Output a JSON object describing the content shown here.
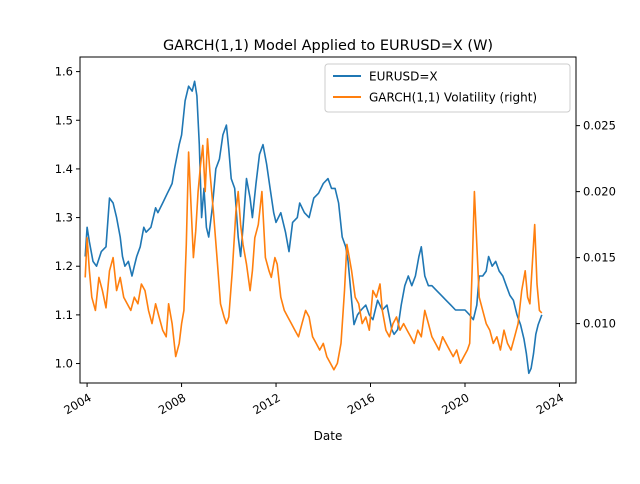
{
  "chart_data": {
    "type": "line",
    "title": "GARCH(1,1) Model Applied to EURUSD=X (W)",
    "xlabel": "Date",
    "ylabel": "",
    "y2label": "",
    "x_ticks": [
      "2004",
      "2008",
      "2012",
      "2016",
      "2020",
      "2024"
    ],
    "y_ticks": [
      "1.0",
      "1.1",
      "1.2",
      "1.3",
      "1.4",
      "1.5",
      "1.6"
    ],
    "y2_ticks": [
      "0.010",
      "0.015",
      "0.020",
      "0.025"
    ],
    "xlim": [
      2003.7,
      2024.7
    ],
    "ylim": [
      0.96,
      1.63
    ],
    "y2lim": [
      0.0055,
      0.0302
    ],
    "legend_position": "top-right",
    "series": [
      {
        "name": "EURUSD=X",
        "axis": "left",
        "color": "#1f77b4",
        "x": [
          2003.92,
          2004.0,
          2004.1,
          2004.25,
          2004.4,
          2004.6,
          2004.8,
          2004.95,
          2005.1,
          2005.25,
          2005.4,
          2005.5,
          2005.6,
          2005.75,
          2005.9,
          2006.0,
          2006.1,
          2006.25,
          2006.4,
          2006.5,
          2006.7,
          2006.9,
          2007.0,
          2007.2,
          2007.4,
          2007.5,
          2007.6,
          2007.7,
          2007.9,
          2008.0,
          2008.15,
          2008.3,
          2008.45,
          2008.55,
          2008.65,
          2008.75,
          2008.85,
          2008.95,
          2009.05,
          2009.15,
          2009.3,
          2009.45,
          2009.6,
          2009.75,
          2009.9,
          2010.0,
          2010.1,
          2010.25,
          2010.4,
          2010.5,
          2010.6,
          2010.75,
          2010.9,
          2011.0,
          2011.15,
          2011.3,
          2011.45,
          2011.6,
          2011.75,
          2011.9,
          2012.0,
          2012.2,
          2012.4,
          2012.55,
          2012.7,
          2012.9,
          2013.0,
          2013.2,
          2013.4,
          2013.6,
          2013.8,
          2014.0,
          2014.2,
          2014.35,
          2014.5,
          2014.65,
          2014.8,
          2014.95,
          2015.05,
          2015.2,
          2015.3,
          2015.45,
          2015.6,
          2015.8,
          2015.95,
          2016.1,
          2016.3,
          2016.5,
          2016.7,
          2016.9,
          2017.0,
          2017.15,
          2017.3,
          2017.45,
          2017.6,
          2017.75,
          2017.9,
          2018.05,
          2018.15,
          2018.3,
          2018.45,
          2018.6,
          2018.8,
          2019.0,
          2019.2,
          2019.4,
          2019.6,
          2019.8,
          2020.0,
          2020.2,
          2020.35,
          2020.5,
          2020.6,
          2020.75,
          2020.9,
          2021.0,
          2021.15,
          2021.3,
          2021.45,
          2021.6,
          2021.75,
          2021.9,
          2022.05,
          2022.2,
          2022.35,
          2022.5,
          2022.6,
          2022.7,
          2022.8,
          2022.9,
          2023.0,
          2023.1,
          2023.25
        ],
        "values": [
          1.22,
          1.28,
          1.25,
          1.21,
          1.2,
          1.23,
          1.24,
          1.34,
          1.33,
          1.3,
          1.26,
          1.22,
          1.2,
          1.21,
          1.18,
          1.2,
          1.22,
          1.24,
          1.28,
          1.27,
          1.28,
          1.32,
          1.31,
          1.33,
          1.35,
          1.36,
          1.37,
          1.4,
          1.45,
          1.47,
          1.54,
          1.57,
          1.56,
          1.58,
          1.55,
          1.45,
          1.3,
          1.36,
          1.28,
          1.26,
          1.32,
          1.4,
          1.42,
          1.47,
          1.49,
          1.44,
          1.38,
          1.36,
          1.26,
          1.22,
          1.28,
          1.38,
          1.34,
          1.3,
          1.37,
          1.43,
          1.45,
          1.41,
          1.36,
          1.31,
          1.29,
          1.31,
          1.27,
          1.23,
          1.29,
          1.3,
          1.33,
          1.31,
          1.3,
          1.34,
          1.35,
          1.37,
          1.38,
          1.36,
          1.36,
          1.33,
          1.26,
          1.24,
          1.21,
          1.13,
          1.08,
          1.1,
          1.11,
          1.12,
          1.1,
          1.09,
          1.13,
          1.11,
          1.12,
          1.07,
          1.06,
          1.07,
          1.12,
          1.16,
          1.18,
          1.16,
          1.18,
          1.22,
          1.24,
          1.18,
          1.16,
          1.16,
          1.15,
          1.14,
          1.13,
          1.12,
          1.11,
          1.11,
          1.11,
          1.1,
          1.09,
          1.12,
          1.18,
          1.18,
          1.19,
          1.22,
          1.2,
          1.21,
          1.19,
          1.18,
          1.16,
          1.14,
          1.13,
          1.1,
          1.08,
          1.05,
          1.02,
          0.98,
          0.99,
          1.02,
          1.06,
          1.08,
          1.1
        ]
      },
      {
        "name": "GARCH(1,1) Volatility (right)",
        "axis": "right",
        "color": "#ff7f0e",
        "x": [
          2003.92,
          2004.0,
          2004.1,
          2004.2,
          2004.35,
          2004.5,
          2004.65,
          2004.8,
          2004.95,
          2005.1,
          2005.25,
          2005.4,
          2005.55,
          2005.7,
          2005.85,
          2006.0,
          2006.15,
          2006.3,
          2006.45,
          2006.6,
          2006.75,
          2006.9,
          2007.05,
          2007.2,
          2007.35,
          2007.45,
          2007.6,
          2007.75,
          2007.9,
          2008.0,
          2008.1,
          2008.2,
          2008.3,
          2008.4,
          2008.5,
          2008.6,
          2008.7,
          2008.8,
          2008.9,
          2009.0,
          2009.1,
          2009.2,
          2009.35,
          2009.5,
          2009.65,
          2009.8,
          2009.9,
          2010.0,
          2010.15,
          2010.3,
          2010.4,
          2010.5,
          2010.6,
          2010.75,
          2010.9,
          2011.0,
          2011.1,
          2011.25,
          2011.4,
          2011.55,
          2011.7,
          2011.8,
          2011.95,
          2012.05,
          2012.2,
          2012.35,
          2012.5,
          2012.65,
          2012.8,
          2012.95,
          2013.1,
          2013.25,
          2013.4,
          2013.55,
          2013.7,
          2013.85,
          2014.0,
          2014.15,
          2014.3,
          2014.45,
          2014.6,
          2014.75,
          2014.9,
          2015.0,
          2015.1,
          2015.2,
          2015.35,
          2015.5,
          2015.65,
          2015.8,
          2015.95,
          2016.1,
          2016.25,
          2016.4,
          2016.5,
          2016.65,
          2016.8,
          2016.95,
          2017.1,
          2017.25,
          2017.4,
          2017.55,
          2017.7,
          2017.85,
          2018.0,
          2018.15,
          2018.3,
          2018.45,
          2018.6,
          2018.75,
          2018.9,
          2019.05,
          2019.2,
          2019.35,
          2019.5,
          2019.65,
          2019.8,
          2019.95,
          2020.1,
          2020.2,
          2020.3,
          2020.4,
          2020.5,
          2020.6,
          2020.75,
          2020.9,
          2021.05,
          2021.2,
          2021.35,
          2021.5,
          2021.65,
          2021.8,
          2021.95,
          2022.1,
          2022.25,
          2022.4,
          2022.55,
          2022.65,
          2022.75,
          2022.85,
          2022.95,
          2023.05,
          2023.15,
          2023.25
        ],
        "values": [
          0.0135,
          0.0165,
          0.014,
          0.012,
          0.011,
          0.0135,
          0.0125,
          0.0112,
          0.014,
          0.015,
          0.0125,
          0.0135,
          0.012,
          0.0115,
          0.011,
          0.012,
          0.0115,
          0.013,
          0.0125,
          0.011,
          0.01,
          0.0115,
          0.0105,
          0.0095,
          0.009,
          0.0115,
          0.01,
          0.0075,
          0.0085,
          0.01,
          0.011,
          0.016,
          0.023,
          0.019,
          0.015,
          0.017,
          0.02,
          0.022,
          0.0235,
          0.02,
          0.024,
          0.0215,
          0.0185,
          0.015,
          0.0115,
          0.0105,
          0.01,
          0.0105,
          0.014,
          0.0185,
          0.02,
          0.0175,
          0.016,
          0.0145,
          0.0125,
          0.014,
          0.0165,
          0.0175,
          0.02,
          0.015,
          0.014,
          0.0135,
          0.015,
          0.0145,
          0.012,
          0.011,
          0.0105,
          0.01,
          0.0095,
          0.009,
          0.01,
          0.011,
          0.0105,
          0.009,
          0.0085,
          0.008,
          0.0085,
          0.0075,
          0.007,
          0.0065,
          0.007,
          0.0085,
          0.0125,
          0.016,
          0.015,
          0.014,
          0.012,
          0.0115,
          0.01,
          0.0105,
          0.0095,
          0.0125,
          0.012,
          0.013,
          0.011,
          0.0095,
          0.009,
          0.01,
          0.0105,
          0.0095,
          0.01,
          0.0095,
          0.009,
          0.0085,
          0.0095,
          0.009,
          0.011,
          0.01,
          0.009,
          0.0085,
          0.008,
          0.009,
          0.0085,
          0.008,
          0.0075,
          0.008,
          0.007,
          0.0075,
          0.008,
          0.0085,
          0.014,
          0.02,
          0.016,
          0.012,
          0.011,
          0.01,
          0.0095,
          0.0085,
          0.009,
          0.008,
          0.0095,
          0.0085,
          0.008,
          0.009,
          0.01,
          0.0125,
          0.014,
          0.012,
          0.0115,
          0.0145,
          0.0175,
          0.013,
          0.011,
          0.0108
        ]
      }
    ]
  }
}
